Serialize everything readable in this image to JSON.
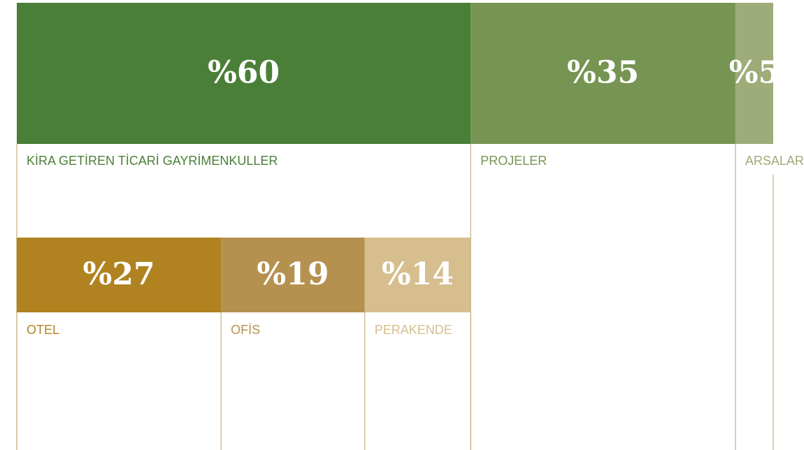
{
  "chart_data": {
    "type": "proportion",
    "segments": [
      {
        "name": "KİRA GETİREN TİCARİ GAYRİMENKULLER",
        "value": 60,
        "value_label": "%60",
        "color": "#4a7f38",
        "segments": [
          {
            "name": "OTEL",
            "value": 27,
            "value_label": "%27",
            "color": "#b08220"
          },
          {
            "name": "OFİS",
            "value": 19,
            "value_label": "%19",
            "color": "#b5914f"
          },
          {
            "name": "PERAKENDE",
            "value": 14,
            "value_label": "%14",
            "color": "#d6be8e"
          }
        ]
      },
      {
        "name": "PROJELER",
        "value": 35,
        "value_label": "%35",
        "color": "#769452"
      },
      {
        "name": "ARSALAR",
        "value": 5,
        "value_label": "%5",
        "color": "#9dac78"
      }
    ]
  }
}
